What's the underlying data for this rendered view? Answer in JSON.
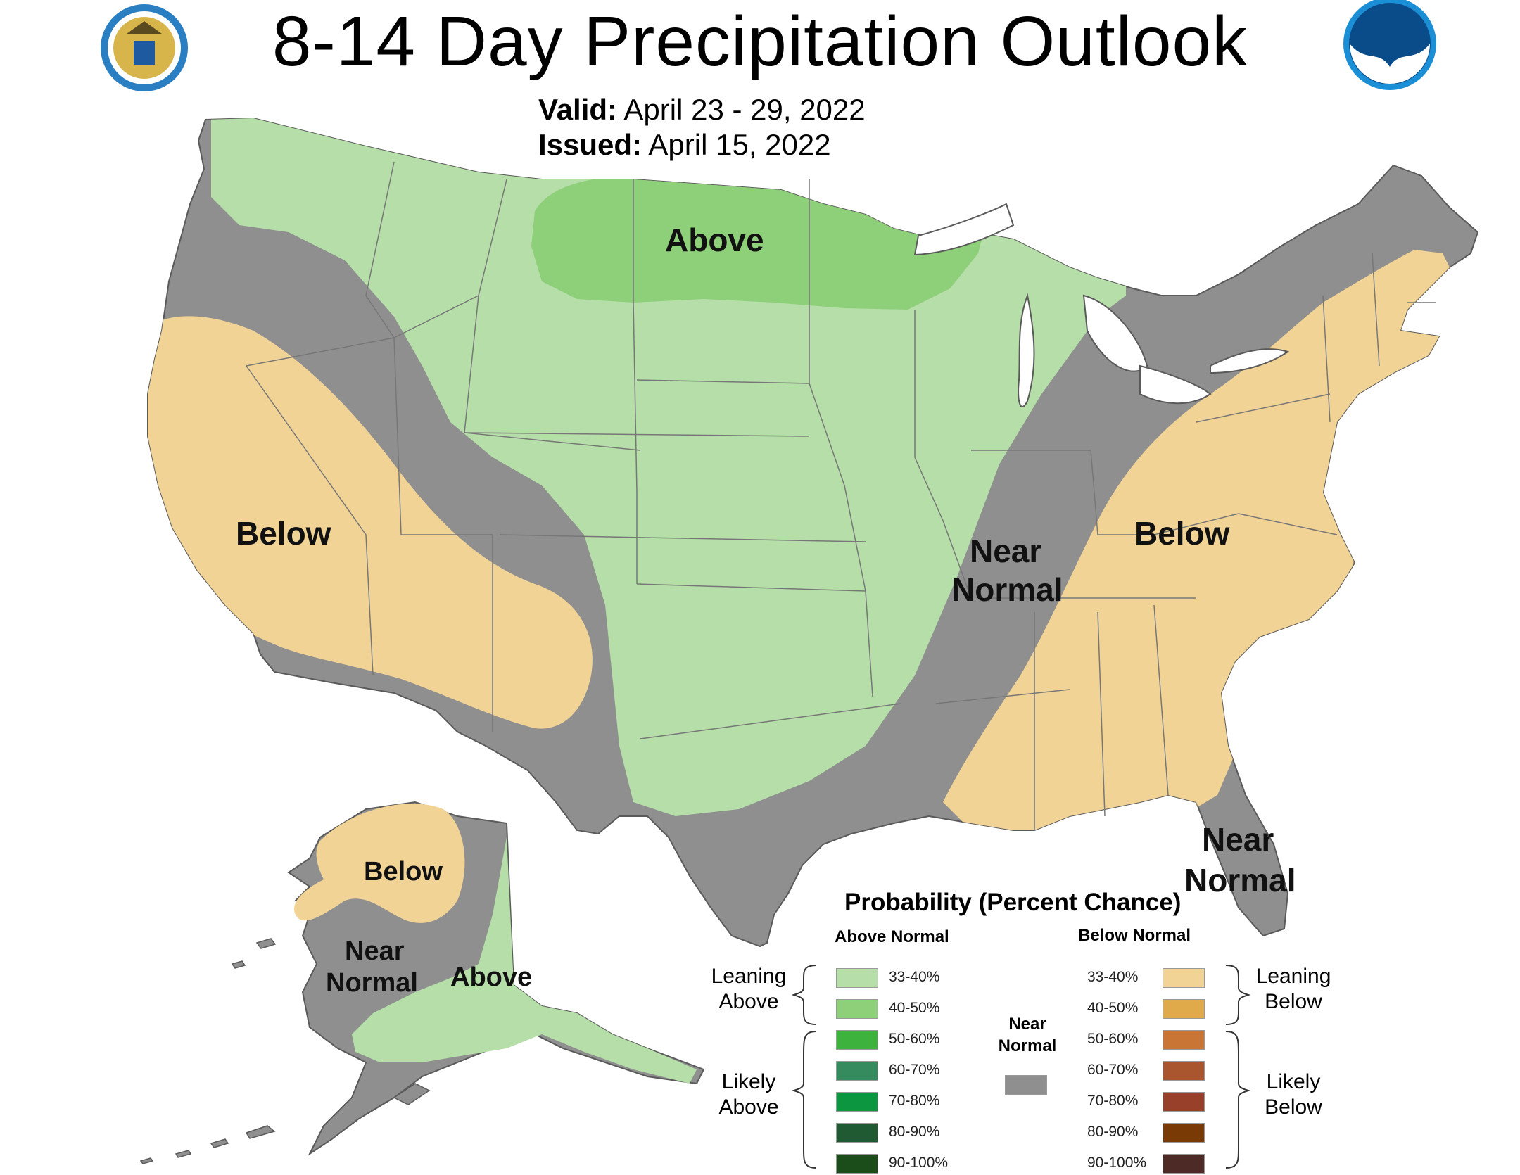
{
  "title": "8-14 Day Precipitation Outlook",
  "valid": {
    "label": "Valid:",
    "value": "April 23 - 29, 2022"
  },
  "issued": {
    "label": "Issued:",
    "value": "April 15, 2022"
  },
  "logos": {
    "commerce": "Department of Commerce seal",
    "noaa": "NOAA"
  },
  "colors": {
    "near_normal": "#8f8f8f",
    "above_33_40": "#b5dea8",
    "above_40_50": "#8ecf7a",
    "below_33_40": "#f2d396",
    "water": "#ffffff"
  },
  "map_labels": {
    "above_north": "Above",
    "below_west": "Below",
    "near_normal_central_1": "Near",
    "near_normal_central_2": "Normal",
    "below_east": "Below",
    "near_normal_florida_1": "Near",
    "near_normal_florida_2": "Normal",
    "alaska_below": "Below",
    "alaska_near_1": "Near",
    "alaska_near_2": "Normal",
    "alaska_above": "Above"
  },
  "legend": {
    "title": "Probability (Percent Chance)",
    "above_header": "Above Normal",
    "below_header": "Below Normal",
    "near_header_1": "Near",
    "near_header_2": "Normal",
    "leaning_above_1": "Leaning",
    "leaning_above_2": "Above",
    "likely_above_1": "Likely",
    "likely_above_2": "Above",
    "leaning_below_1": "Leaning",
    "leaning_below_2": "Below",
    "likely_below_1": "Likely",
    "likely_below_2": "Below",
    "above": [
      {
        "range": "33-40%",
        "color": "#b5dea8"
      },
      {
        "range": "40-50%",
        "color": "#8ecf7a"
      },
      {
        "range": "50-60%",
        "color": "#3db23d"
      },
      {
        "range": "60-70%",
        "color": "#358a5e"
      },
      {
        "range": "70-80%",
        "color": "#0d9640"
      },
      {
        "range": "80-90%",
        "color": "#1f5a33"
      },
      {
        "range": "90-100%",
        "color": "#1a4d1a"
      }
    ],
    "below": [
      {
        "range": "33-40%",
        "color": "#f2d396"
      },
      {
        "range": "40-50%",
        "color": "#e0a94a"
      },
      {
        "range": "50-60%",
        "color": "#c97535"
      },
      {
        "range": "60-70%",
        "color": "#a9562e"
      },
      {
        "range": "70-80%",
        "color": "#99402a"
      },
      {
        "range": "80-90%",
        "color": "#7a3a05"
      },
      {
        "range": "90-100%",
        "color": "#4d2a26"
      }
    ],
    "near_color": "#8f8f8f"
  }
}
